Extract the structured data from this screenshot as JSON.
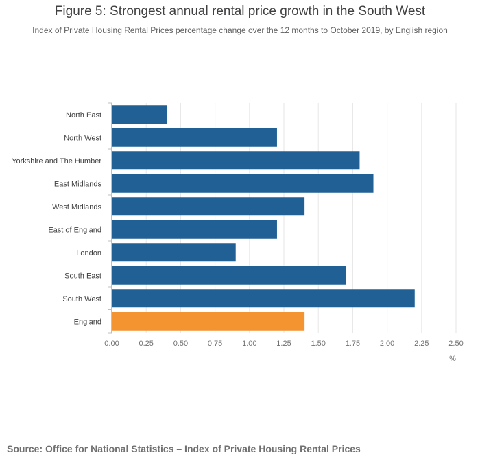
{
  "title": "Figure 5: Strongest annual rental price growth in the South West",
  "subtitle": "Index of Private Housing Rental Prices percentage change over the 12 months to October 2019, by English region",
  "source": "Source: Office for National Statistics – Index of Private Housing Rental Prices",
  "colors": {
    "bar": "#206095",
    "highlight": "#f39431",
    "grid": "#e6e6e6",
    "axis": "#bfbfbf"
  },
  "chart_data": {
    "type": "bar",
    "orientation": "horizontal",
    "categories": [
      "North East",
      "North West",
      "Yorkshire and The Humber",
      "East Midlands",
      "West Midlands",
      "East of England",
      "London",
      "South East",
      "South West",
      "England"
    ],
    "values": [
      0.4,
      1.2,
      1.8,
      1.9,
      1.4,
      1.2,
      0.9,
      1.7,
      2.2,
      1.4
    ],
    "highlight_category": "England",
    "xlim": [
      0,
      2.5
    ],
    "xticks": [
      "0.00",
      "0.25",
      "0.50",
      "0.75",
      "1.00",
      "1.25",
      "1.50",
      "1.75",
      "2.00",
      "2.25",
      "2.50"
    ],
    "xlabel": "%",
    "ylabel": "",
    "grid": true
  }
}
